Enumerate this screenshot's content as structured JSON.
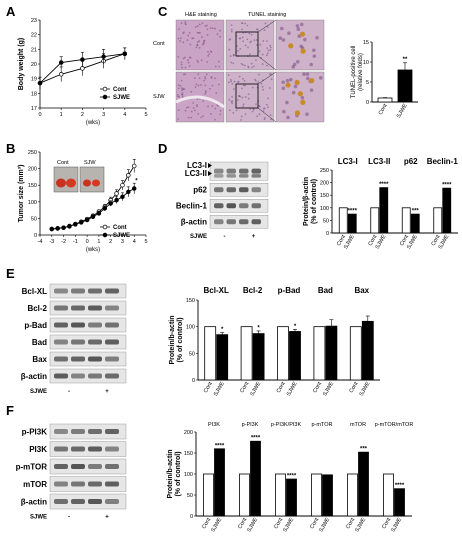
{
  "panels": {
    "A": "A",
    "B": "B",
    "C": "C",
    "D": "D",
    "E": "E",
    "F": "F"
  },
  "colors": {
    "black": "#000000",
    "white": "#ffffff",
    "he_bg": "#c9a4c4",
    "he_dot": "#7c4a84",
    "tunel_pos": "#c98a2c",
    "blot_bg": "#e6e6e6",
    "blot_band": "#3a3a3a"
  },
  "icons": {
    "marker": "arrowhead",
    "open_circle": "open-circle-marker",
    "filled_circle": "filled-circle-marker"
  },
  "panelC": {
    "col_labels": [
      "H&E staining",
      "TUNEL staining"
    ],
    "row_labels": [
      "Cont",
      "SJW"
    ],
    "chart": {
      "ylabel": "TUNEL-positive cell",
      "ylabel2": "(relative folds)",
      "stars": "**"
    }
  },
  "panelB": {
    "photo_labels": [
      "Cont",
      "SJW"
    ]
  },
  "panelD": {
    "blot_labels": [
      "LC3-I",
      "LC3-II",
      "p62",
      "Beclin-1",
      "β-actin"
    ],
    "treatment": "SJWE",
    "lanes": [
      "-",
      "+"
    ]
  },
  "panelE": {
    "blot_labels": [
      "Bcl-XL",
      "Bcl-2",
      "p-Bad",
      "Bad",
      "Bax",
      "β-actin"
    ],
    "treatment": "SJWE",
    "lanes": [
      "-",
      "+"
    ]
  },
  "panelF": {
    "blot_labels": [
      "p-PI3K",
      "PI3K",
      "p-mTOR",
      "mTOR",
      "β-actin"
    ],
    "treatment": "SJWE",
    "lanes": [
      "-",
      "+"
    ]
  },
  "chart_data": [
    {
      "id": "A",
      "type": "line",
      "xlabel": "(wks)",
      "ylabel": "Body weight (g)",
      "xlim": [
        0,
        5
      ],
      "ylim": [
        17,
        23
      ],
      "xticks": [
        0,
        1,
        2,
        3,
        4,
        5
      ],
      "yticks": [
        17,
        18,
        19,
        20,
        21,
        22,
        23
      ],
      "series": [
        {
          "name": "Cont",
          "marker": "open",
          "x": [
            0,
            1,
            2,
            3,
            4
          ],
          "y": [
            18.7,
            19.3,
            19.7,
            20.2,
            20.7
          ],
          "err": [
            0.4,
            0.5,
            0.5,
            0.5,
            0.4
          ]
        },
        {
          "name": "SJWE",
          "marker": "filled",
          "x": [
            0,
            1,
            2,
            3,
            4
          ],
          "y": [
            18.7,
            20.1,
            20.3,
            20.5,
            20.7
          ],
          "err": [
            0.4,
            0.4,
            0.5,
            0.5,
            0.4
          ]
        }
      ]
    },
    {
      "id": "B",
      "type": "line",
      "xlabel": "(wks)",
      "ylabel": "Tumor size (mm³)",
      "xlim": [
        -4,
        5
      ],
      "ylim": [
        0,
        250
      ],
      "xticks": [
        -4,
        -3,
        -2,
        -1,
        0,
        1,
        2,
        3,
        4,
        5
      ],
      "yticks": [
        0,
        50,
        100,
        150,
        200,
        250
      ],
      "series": [
        {
          "name": "Cont",
          "marker": "open",
          "x": [
            -3,
            -2.5,
            -2,
            -1.5,
            -1,
            -0.5,
            0,
            0.5,
            1,
            1.5,
            2,
            2.5,
            3,
            3.5,
            4
          ],
          "y": [
            18,
            20,
            22,
            27,
            33,
            40,
            48,
            58,
            70,
            85,
            105,
            125,
            150,
            180,
            208
          ],
          "err": [
            2,
            2,
            3,
            3,
            3,
            4,
            5,
            5,
            6,
            7,
            9,
            11,
            14,
            17,
            20
          ]
        },
        {
          "name": "SJWE",
          "marker": "filled",
          "x": [
            -3,
            -2.5,
            -2,
            -1.5,
            -1,
            -0.5,
            0,
            0.5,
            1,
            1.5,
            2,
            2.5,
            3,
            3.5,
            4
          ],
          "y": [
            18,
            20,
            22,
            26,
            32,
            38,
            45,
            55,
            65,
            80,
            95,
            105,
            115,
            130,
            140
          ],
          "err": [
            2,
            2,
            3,
            3,
            3,
            4,
            5,
            5,
            6,
            7,
            8,
            10,
            12,
            15,
            16
          ]
        }
      ],
      "stars": {
        "x": 4,
        "text": "*"
      }
    },
    {
      "id": "C",
      "type": "bar",
      "categories": [
        "Cont",
        "SJWE"
      ],
      "values": [
        1,
        8
      ],
      "err": [
        0.1,
        1.8
      ],
      "fills": [
        "white",
        "black"
      ],
      "ylim": [
        0,
        15
      ],
      "yticks": [
        0,
        5,
        10,
        15
      ]
    },
    {
      "id": "D",
      "type": "bar",
      "ylabel": "Protein/β-actin",
      "ylabel2": "(% of control)",
      "ylim": [
        0,
        250
      ],
      "yticks": [
        0,
        50,
        100,
        150,
        200,
        250
      ],
      "groups": [
        {
          "name": "LC3-I",
          "cont": 100,
          "sjwe": 75,
          "stars": "****"
        },
        {
          "name": "LC3-II",
          "cont": 100,
          "sjwe": 180,
          "stars": "****"
        },
        {
          "name": "p62",
          "cont": 100,
          "sjwe": 75,
          "stars": "***"
        },
        {
          "name": "Beclin-1",
          "cont": 100,
          "sjwe": 178,
          "stars": "****"
        }
      ],
      "categories": [
        "Cont",
        "SJWE"
      ]
    },
    {
      "id": "E",
      "type": "bar",
      "ylabel": "Protein/b-actin",
      "ylabel2": "(% of control)",
      "ylim": [
        0,
        150
      ],
      "yticks": [
        0,
        50,
        100,
        150
      ],
      "groups": [
        {
          "name": "Bcl-XL",
          "cont": 100,
          "sjwe": 85,
          "err": 4,
          "stars": "*"
        },
        {
          "name": "Bcl-2",
          "cont": 100,
          "sjwe": 87,
          "err": 5,
          "stars": "*"
        },
        {
          "name": "p-Bad",
          "cont": 100,
          "sjwe": 91,
          "err": 4,
          "stars": "*"
        },
        {
          "name": "Bad",
          "cont": 100,
          "sjwe": 101,
          "err": 12,
          "stars": ""
        },
        {
          "name": "Bax",
          "cont": 100,
          "sjwe": 110,
          "err": 10,
          "stars": ""
        }
      ],
      "categories": [
        "Cont",
        "SJWE"
      ]
    },
    {
      "id": "F",
      "type": "bar",
      "ylabel": "Protein/b-actin",
      "ylabel2": "(% of control)",
      "ylim": [
        0,
        200
      ],
      "yticks": [
        0,
        50,
        100,
        150,
        200
      ],
      "groups": [
        {
          "name": "PI3K",
          "cont": 100,
          "sjwe": 160,
          "stars": "****"
        },
        {
          "name": "p-PI3K",
          "cont": 100,
          "sjwe": 178,
          "stars": "****"
        },
        {
          "name": "p-PI3K/PI3K",
          "cont": 100,
          "sjwe": 88,
          "stars": "****"
        },
        {
          "name": "p-mTOR",
          "cont": 100,
          "sjwe": 98,
          "stars": ""
        },
        {
          "name": "mTOR",
          "cont": 100,
          "sjwe": 152,
          "stars": "***"
        },
        {
          "name": "p-mTOR/mTOR",
          "cont": 100,
          "sjwe": 65,
          "stars": "****"
        }
      ],
      "categories": [
        "Cont",
        "SJWE"
      ]
    }
  ]
}
